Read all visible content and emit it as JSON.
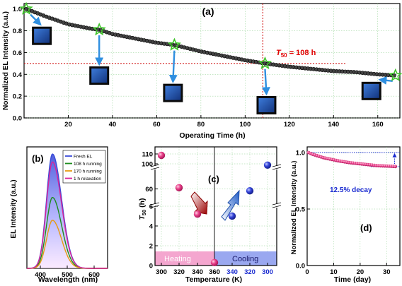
{
  "chart_data": [
    {
      "panel": "(a)",
      "type": "scatter",
      "xlabel": "Operating Time (h)",
      "ylabel": "Normalized EL Intensity (a.u.)",
      "xlim": [
        0,
        170
      ],
      "ylim": [
        0.0,
        1.05
      ],
      "xticks": [
        "20",
        "40",
        "60",
        "80",
        "100",
        "120",
        "140",
        "160"
      ],
      "yticks": [
        "0.0",
        "0.2",
        "0.4",
        "0.6",
        "0.8",
        "1.0"
      ],
      "series": [
        {
          "marker": "circle",
          "x": [
            1,
            10,
            20,
            30,
            34,
            40,
            50,
            60,
            68,
            80,
            90,
            100,
            109,
            120,
            130,
            140,
            150,
            160,
            168
          ],
          "y": [
            1.0,
            0.93,
            0.86,
            0.82,
            0.81,
            0.77,
            0.73,
            0.69,
            0.67,
            0.61,
            0.57,
            0.53,
            0.5,
            0.47,
            0.45,
            0.43,
            0.42,
            0.4,
            0.39
          ]
        }
      ],
      "stars": {
        "x": [
          1,
          34,
          68,
          109,
          168
        ],
        "y": [
          1.0,
          0.81,
          0.67,
          0.5,
          0.39
        ]
      },
      "annotation_t50": {
        "prefix": "T",
        "subscript": "50",
        "suffix": " = 108 h",
        "x": 108,
        "y": 0.5
      },
      "colors": {
        "markers": "#1a1a1a",
        "stars": "#3fc42a",
        "guide": "#cc0000",
        "annotation": "#e00000",
        "device": "#1f4fa8",
        "arrow": "#2f8fe0"
      }
    },
    {
      "panel": "(b)",
      "type": "area",
      "xlabel": "Wavelength (nm)",
      "ylabel": "EL Intensity (a.u.)",
      "xlim": [
        350,
        650
      ],
      "xticks": [
        "400",
        "500",
        "600"
      ],
      "peak_nm": 445,
      "series": [
        {
          "name": "Fresh EL",
          "peak": 1.0,
          "color": "#3b4cd8"
        },
        {
          "name": "108 h running",
          "peak": 0.62,
          "color": "#1e8c1e"
        },
        {
          "name": "170 h running",
          "peak": 0.42,
          "color": "#e89a10"
        },
        {
          "name": "1 h relaxation",
          "peak": 0.93,
          "color": "#d8239a"
        }
      ]
    },
    {
      "panel": "(c)",
      "type": "scatter",
      "xlabel": "Temperature (K)",
      "ylabel_prefix": "T",
      "ylabel_sub": "50",
      "ylabel_suffix": " (h)",
      "xticks_heating": [
        "300",
        "320",
        "340",
        "360"
      ],
      "xticks_cooling": [
        "340",
        "320",
        "300"
      ],
      "yticks": [
        "0",
        "2",
        "4",
        "6",
        "60",
        "100",
        "110"
      ],
      "bands": [
        "Heating",
        "Cooling"
      ],
      "heating": {
        "x": [
          300,
          320,
          340,
          360
        ],
        "y": [
          108,
          62,
          5.2,
          0.3
        ]
      },
      "cooling": {
        "x": [
          340,
          320,
          300
        ],
        "y": [
          5.0,
          57,
          98
        ]
      },
      "colors": {
        "heating": "#e0307a",
        "cooling": "#2f3fd0",
        "heating_band": "#f4a6cf",
        "cooling_band": "#9aa8f0"
      }
    },
    {
      "panel": "(d)",
      "type": "scatter",
      "xlabel": "Time (day)",
      "ylabel": "Normalized EL Intensity (a.u.)",
      "xlim": [
        0,
        35
      ],
      "ylim": [
        0.0,
        1.05
      ],
      "xticks": [
        "0",
        "10",
        "20",
        "30"
      ],
      "yticks": [
        "0.0",
        "0.5",
        "1.0"
      ],
      "x": [
        0.5,
        2,
        4,
        6,
        8,
        10,
        12,
        14,
        16,
        18,
        20,
        22,
        24,
        26,
        28,
        30,
        32,
        34
      ],
      "y": [
        1.0,
        0.985,
        0.97,
        0.955,
        0.945,
        0.935,
        0.925,
        0.918,
        0.91,
        0.905,
        0.9,
        0.895,
        0.89,
        0.885,
        0.882,
        0.88,
        0.878,
        0.875
      ],
      "annotation": "12.5% decay",
      "colors": {
        "marker": "#e0307a",
        "guide": "#1a2bd0",
        "annotation": "#1a2bd0"
      }
    }
  ]
}
